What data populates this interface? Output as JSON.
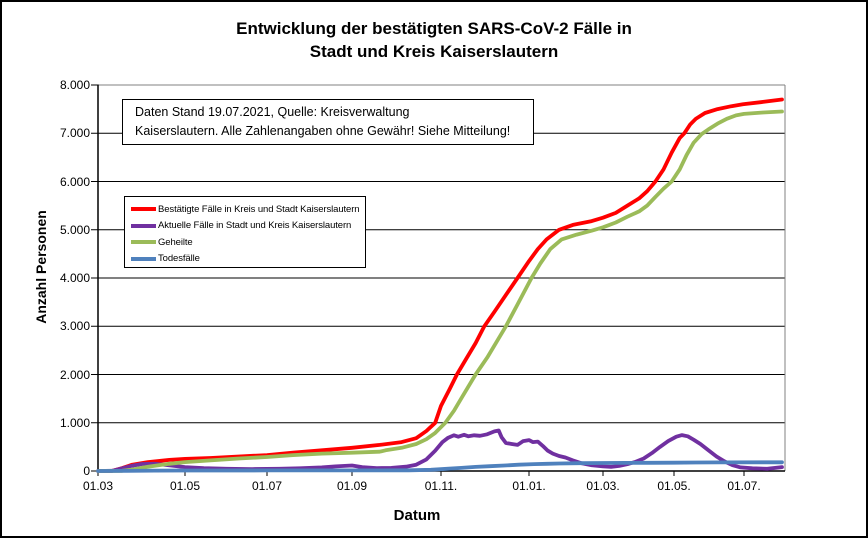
{
  "chart_data": {
    "type": "line",
    "title_lines": [
      "Entwicklung der bestätigten SARS-CoV-2 Fälle in",
      "Stadt und Kreis Kaiserslautern"
    ],
    "xlabel": "Datum",
    "ylabel": "Anzahl Personen",
    "ylim": [
      0,
      8000
    ],
    "annotation": [
      "Daten Stand 19.07.2021, Quelle: Kreisverwaltung",
      "Kaiserslautern. Alle Zahlenangaben ohne Gewähr! Siehe Mitteilung!"
    ],
    "y_ticks": [
      {
        "label": "8.000",
        "value": 8000
      },
      {
        "label": "7.000",
        "value": 7000
      },
      {
        "label": "6.000",
        "value": 6000
      },
      {
        "label": "5.000",
        "value": 5000
      },
      {
        "label": "4.000",
        "value": 4000
      },
      {
        "label": "3.000",
        "value": 3000
      },
      {
        "label": "2.000",
        "value": 2000
      },
      {
        "label": "1.000",
        "value": 1000
      },
      {
        "label": "0",
        "value": 0
      }
    ],
    "x_ticks": [
      {
        "label": "01.03",
        "date": "2020-03-01"
      },
      {
        "label": "01.05",
        "date": "2020-05-01"
      },
      {
        "label": "01.07",
        "date": "2020-07-01"
      },
      {
        "label": "01.09",
        "date": "2020-09-01"
      },
      {
        "label": "01.11.",
        "date": "2020-11-01"
      },
      {
        "label": "01.01.",
        "date": "2021-01-01"
      },
      {
        "label": "01.03.",
        "date": "2021-03-01"
      },
      {
        "label": "01.05.",
        "date": "2021-05-01"
      },
      {
        "label": "01.07.",
        "date": "2021-07-01"
      }
    ],
    "x_end_date": "2021-07-19",
    "layout": {
      "grid": "horizontal",
      "legend_position": "inside upper-left",
      "x_axis_type": "date",
      "plot_border_color": "#808080",
      "gridline_color": "#000000"
    },
    "series": [
      {
        "name": "Bestätigte Fälle in Kreis und Stadt Kaiserslautern",
        "color": "#FF0000",
        "points": [
          [
            "2020-03-01",
            0
          ],
          [
            "2020-03-11",
            5
          ],
          [
            "2020-03-18",
            60
          ],
          [
            "2020-03-25",
            130
          ],
          [
            "2020-04-05",
            185
          ],
          [
            "2020-04-20",
            230
          ],
          [
            "2020-05-01",
            250
          ],
          [
            "2020-05-20",
            270
          ],
          [
            "2020-06-10",
            300
          ],
          [
            "2020-07-01",
            330
          ],
          [
            "2020-07-20",
            380
          ],
          [
            "2020-08-10",
            430
          ],
          [
            "2020-09-01",
            480
          ],
          [
            "2020-09-20",
            540
          ],
          [
            "2020-10-05",
            600
          ],
          [
            "2020-10-15",
            680
          ],
          [
            "2020-10-22",
            830
          ],
          [
            "2020-10-28",
            1000
          ],
          [
            "2020-11-01",
            1350
          ],
          [
            "2020-11-07",
            1700
          ],
          [
            "2020-11-12",
            2000
          ],
          [
            "2020-11-18",
            2300
          ],
          [
            "2020-11-25",
            2650
          ],
          [
            "2020-12-01",
            3000
          ],
          [
            "2020-12-08",
            3300
          ],
          [
            "2020-12-16",
            3650
          ],
          [
            "2020-12-24",
            4000
          ],
          [
            "2021-01-01",
            4350
          ],
          [
            "2021-01-08",
            4600
          ],
          [
            "2021-01-15",
            4800
          ],
          [
            "2021-01-25",
            5000
          ],
          [
            "2021-02-05",
            5100
          ],
          [
            "2021-02-20",
            5180
          ],
          [
            "2021-03-01",
            5250
          ],
          [
            "2021-03-12",
            5350
          ],
          [
            "2021-03-22",
            5500
          ],
          [
            "2021-04-01",
            5650
          ],
          [
            "2021-04-08",
            5800
          ],
          [
            "2021-04-15",
            6000
          ],
          [
            "2021-04-22",
            6250
          ],
          [
            "2021-04-29",
            6600
          ],
          [
            "2021-05-06",
            6900
          ],
          [
            "2021-05-10",
            7000
          ],
          [
            "2021-05-15",
            7180
          ],
          [
            "2021-05-20",
            7300
          ],
          [
            "2021-05-28",
            7420
          ],
          [
            "2021-06-08",
            7500
          ],
          [
            "2021-06-20",
            7560
          ],
          [
            "2021-06-30",
            7600
          ],
          [
            "2021-07-10",
            7650
          ],
          [
            "2021-07-19",
            7700
          ]
        ]
      },
      {
        "name": "Aktuelle Fälle in Stadt und Kreis Kaiserslautern",
        "color": "#7030A0",
        "points": [
          [
            "2020-03-01",
            0
          ],
          [
            "2020-03-11",
            5
          ],
          [
            "2020-03-18",
            55
          ],
          [
            "2020-03-25",
            110
          ],
          [
            "2020-04-01",
            145
          ],
          [
            "2020-04-10",
            150
          ],
          [
            "2020-04-18",
            125
          ],
          [
            "2020-05-01",
            80
          ],
          [
            "2020-05-15",
            60
          ],
          [
            "2020-06-01",
            45
          ],
          [
            "2020-06-20",
            40
          ],
          [
            "2020-07-10",
            45
          ],
          [
            "2020-07-25",
            55
          ],
          [
            "2020-08-10",
            75
          ],
          [
            "2020-08-20",
            95
          ],
          [
            "2020-09-01",
            115
          ],
          [
            "2020-09-08",
            80
          ],
          [
            "2020-09-18",
            60
          ],
          [
            "2020-09-28",
            65
          ],
          [
            "2020-10-08",
            90
          ],
          [
            "2020-10-15",
            130
          ],
          [
            "2020-10-22",
            240
          ],
          [
            "2020-10-28",
            420
          ],
          [
            "2020-11-02",
            600
          ],
          [
            "2020-11-06",
            690
          ],
          [
            "2020-11-10",
            740
          ],
          [
            "2020-11-13",
            710
          ],
          [
            "2020-11-17",
            750
          ],
          [
            "2020-11-20",
            720
          ],
          [
            "2020-11-24",
            740
          ],
          [
            "2020-11-28",
            730
          ],
          [
            "2020-12-03",
            760
          ],
          [
            "2020-12-08",
            820
          ],
          [
            "2020-12-11",
            840
          ],
          [
            "2020-12-13",
            700
          ],
          [
            "2020-12-16",
            580
          ],
          [
            "2020-12-20",
            560
          ],
          [
            "2020-12-24",
            540
          ],
          [
            "2020-12-28",
            620
          ],
          [
            "2021-01-01",
            640
          ],
          [
            "2021-01-04",
            600
          ],
          [
            "2021-01-08",
            610
          ],
          [
            "2021-01-12",
            520
          ],
          [
            "2021-01-16",
            420
          ],
          [
            "2021-01-20",
            360
          ],
          [
            "2021-01-25",
            310
          ],
          [
            "2021-01-30",
            280
          ],
          [
            "2021-02-05",
            220
          ],
          [
            "2021-02-12",
            160
          ],
          [
            "2021-02-20",
            120
          ],
          [
            "2021-03-01",
            95
          ],
          [
            "2021-03-08",
            85
          ],
          [
            "2021-03-15",
            105
          ],
          [
            "2021-03-22",
            140
          ],
          [
            "2021-03-29",
            190
          ],
          [
            "2021-04-05",
            260
          ],
          [
            "2021-04-12",
            370
          ],
          [
            "2021-04-19",
            500
          ],
          [
            "2021-04-26",
            620
          ],
          [
            "2021-05-03",
            710
          ],
          [
            "2021-05-08",
            745
          ],
          [
            "2021-05-13",
            720
          ],
          [
            "2021-05-18",
            650
          ],
          [
            "2021-05-24",
            560
          ],
          [
            "2021-05-31",
            430
          ],
          [
            "2021-06-07",
            300
          ],
          [
            "2021-06-14",
            200
          ],
          [
            "2021-06-21",
            120
          ],
          [
            "2021-06-28",
            75
          ],
          [
            "2021-07-05",
            55
          ],
          [
            "2021-07-12",
            45
          ],
          [
            "2021-07-19",
            80
          ]
        ]
      },
      {
        "name": "Geheilte",
        "color": "#9BBB59",
        "points": [
          [
            "2020-03-01",
            0
          ],
          [
            "2020-03-18",
            5
          ],
          [
            "2020-03-25",
            30
          ],
          [
            "2020-04-05",
            90
          ],
          [
            "2020-04-20",
            150
          ],
          [
            "2020-05-01",
            185
          ],
          [
            "2020-05-20",
            220
          ],
          [
            "2020-06-10",
            260
          ],
          [
            "2020-07-01",
            290
          ],
          [
            "2020-07-20",
            330
          ],
          [
            "2020-08-10",
            360
          ],
          [
            "2020-09-01",
            380
          ],
          [
            "2020-09-20",
            400
          ],
          [
            "2020-09-24",
            430
          ],
          [
            "2020-10-05",
            480
          ],
          [
            "2020-10-15",
            560
          ],
          [
            "2020-10-22",
            660
          ],
          [
            "2020-10-28",
            790
          ],
          [
            "2020-11-04",
            1000
          ],
          [
            "2020-11-10",
            1250
          ],
          [
            "2020-11-16",
            1550
          ],
          [
            "2020-11-25",
            2000
          ],
          [
            "2020-12-03",
            2350
          ],
          [
            "2020-12-10",
            2700
          ],
          [
            "2020-12-16",
            3000
          ],
          [
            "2020-12-24",
            3450
          ],
          [
            "2021-01-03",
            4000
          ],
          [
            "2021-01-10",
            4300
          ],
          [
            "2021-01-18",
            4600
          ],
          [
            "2021-01-27",
            4800
          ],
          [
            "2021-02-08",
            4900
          ],
          [
            "2021-02-20",
            4980
          ],
          [
            "2021-03-01",
            5050
          ],
          [
            "2021-03-12",
            5150
          ],
          [
            "2021-03-22",
            5270
          ],
          [
            "2021-04-01",
            5380
          ],
          [
            "2021-04-08",
            5500
          ],
          [
            "2021-04-15",
            5680
          ],
          [
            "2021-04-22",
            5850
          ],
          [
            "2021-04-29",
            6000
          ],
          [
            "2021-05-06",
            6250
          ],
          [
            "2021-05-12",
            6550
          ],
          [
            "2021-05-18",
            6800
          ],
          [
            "2021-05-25",
            6980
          ],
          [
            "2021-05-31",
            7080
          ],
          [
            "2021-06-08",
            7200
          ],
          [
            "2021-06-16",
            7300
          ],
          [
            "2021-06-24",
            7370
          ],
          [
            "2021-07-01",
            7400
          ],
          [
            "2021-07-10",
            7430
          ],
          [
            "2021-07-19",
            7450
          ]
        ]
      },
      {
        "name": "Todesfälle",
        "color": "#4F81BD",
        "points": [
          [
            "2020-03-01",
            0
          ],
          [
            "2020-03-20",
            2
          ],
          [
            "2020-04-10",
            8
          ],
          [
            "2020-05-01",
            10
          ],
          [
            "2020-07-01",
            12
          ],
          [
            "2020-09-01",
            12
          ],
          [
            "2020-10-10",
            15
          ],
          [
            "2020-10-25",
            25
          ],
          [
            "2020-11-05",
            45
          ],
          [
            "2020-11-15",
            65
          ],
          [
            "2020-11-25",
            85
          ],
          [
            "2020-12-05",
            100
          ],
          [
            "2020-12-15",
            115
          ],
          [
            "2020-12-25",
            130
          ],
          [
            "2021-01-05",
            142
          ],
          [
            "2021-01-15",
            150
          ],
          [
            "2021-01-25",
            156
          ],
          [
            "2021-02-10",
            162
          ],
          [
            "2021-03-01",
            166
          ],
          [
            "2021-03-20",
            168
          ],
          [
            "2021-04-10",
            170
          ],
          [
            "2021-05-01",
            173
          ],
          [
            "2021-05-20",
            176
          ],
          [
            "2021-06-10",
            178
          ],
          [
            "2021-07-19",
            180
          ]
        ]
      }
    ]
  }
}
